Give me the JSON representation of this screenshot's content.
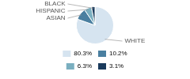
{
  "chart_data": {
    "type": "pie",
    "categories": [
      "WHITE",
      "ASIAN",
      "HISPANIC",
      "BLACK"
    ],
    "values": [
      80.3,
      10.2,
      6.3,
      3.1
    ],
    "value_labels": [
      "80.3%",
      "10.2%",
      "6.3%",
      "3.1%"
    ],
    "colors": [
      "#d6e4f0",
      "#4a7fa0",
      "#7aafc0",
      "#1a3a5c"
    ],
    "legend": "bottom"
  }
}
